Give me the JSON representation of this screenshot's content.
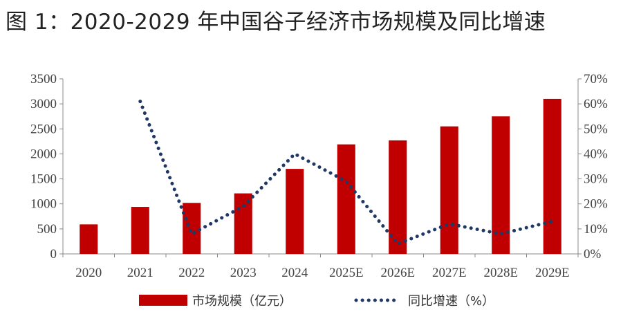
{
  "chart_data": {
    "type": "bar",
    "title": "图 1：2020-2029 年中国谷子经济市场规模及同比增速",
    "categories": [
      "2020",
      "2021",
      "2022",
      "2023",
      "2024",
      "2025E",
      "2026E",
      "2027E",
      "2028E",
      "2029E"
    ],
    "series": [
      {
        "name": "市场规模（亿元）",
        "type": "bar",
        "axis": "left",
        "values": [
          590,
          940,
          1020,
          1210,
          1700,
          2190,
          2270,
          2550,
          2750,
          3100
        ]
      },
      {
        "name": "同比增速（%）",
        "type": "line",
        "style": "dotted",
        "axis": "right",
        "values": [
          null,
          61,
          8,
          19,
          40,
          29,
          4,
          12,
          8,
          13
        ]
      }
    ],
    "y_left": {
      "ylim": [
        0,
        3500
      ],
      "ticks": [
        "0",
        "500",
        "1000",
        "1500",
        "2000",
        "2500",
        "3000",
        "3500"
      ]
    },
    "y_right": {
      "ylim": [
        0,
        70
      ],
      "ticks": [
        "0%",
        "10%",
        "20%",
        "30%",
        "40%",
        "50%",
        "60%",
        "70%"
      ]
    },
    "legend_position": "bottom",
    "grid": false,
    "colors": {
      "bar": "#C00000",
      "line": "#1F3864",
      "axis": "#888888"
    }
  }
}
